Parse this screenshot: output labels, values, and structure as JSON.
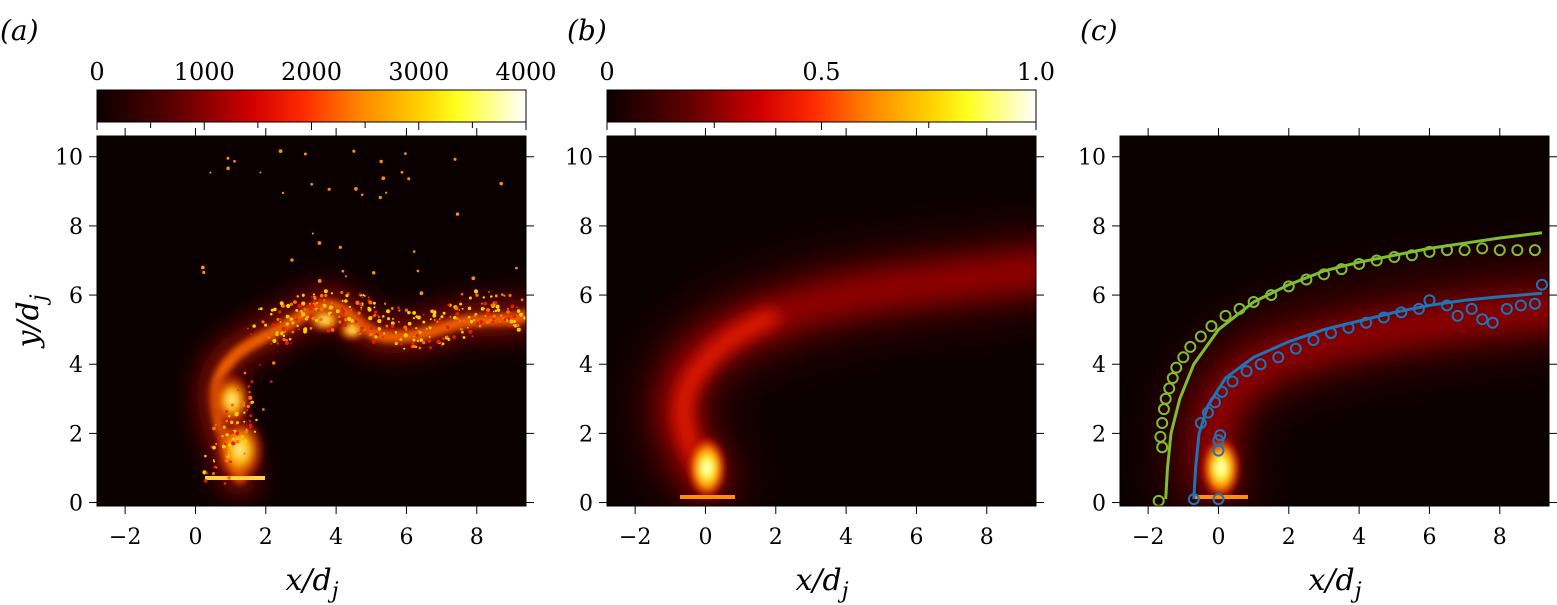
{
  "chart_data": [
    {
      "type": "heatmap",
      "panel_label": "(a)",
      "xlabel": "x/d",
      "xlabel_sub": "j",
      "ylabel": "y/d",
      "ylabel_sub": "j",
      "xlim": [
        -2.8,
        9.4
      ],
      "ylim": [
        -0.1,
        10.6
      ],
      "xticks": [
        -2,
        0,
        2,
        4,
        6,
        8
      ],
      "xtick_labels": [
        "−2",
        "0",
        "2",
        "4",
        "6",
        "8"
      ],
      "yticks": [
        0,
        2,
        4,
        6,
        8,
        10
      ],
      "ytick_labels": [
        "0",
        "2",
        "4",
        "6",
        "8",
        "10"
      ],
      "colorbar": {
        "min": 0,
        "max": 4000,
        "ticks": [
          0,
          1000,
          2000,
          3000,
          4000
        ],
        "tick_labels": [
          "0",
          "1000",
          "2000",
          "3000",
          "4000"
        ],
        "colormap": "hot"
      },
      "description_values": {
        "jet_exit": [
          1.0,
          0.7
        ],
        "instantaneous_plume_path": [
          [
            1.0,
            0.8
          ],
          [
            1.0,
            2.0
          ],
          [
            1.5,
            3.5
          ],
          [
            2.5,
            4.5
          ],
          [
            3.5,
            5.2
          ],
          [
            5.0,
            5.0
          ],
          [
            7.0,
            5.0
          ],
          [
            9.2,
            5.3
          ]
        ]
      }
    },
    {
      "type": "heatmap",
      "panel_label": "(b)",
      "xlabel": "x/d",
      "xlabel_sub": "j",
      "xlim": [
        -2.8,
        9.4
      ],
      "ylim": [
        -0.1,
        10.6
      ],
      "xticks": [
        -2,
        0,
        2,
        4,
        6,
        8
      ],
      "xtick_labels": [
        "−2",
        "0",
        "2",
        "4",
        "6",
        "8"
      ],
      "yticks": [
        0,
        2,
        4,
        6,
        8,
        10
      ],
      "ytick_labels": [
        "0",
        "2",
        "4",
        "6",
        "8",
        "10"
      ],
      "colorbar": {
        "min": 0,
        "max": 1.0,
        "ticks": [
          0,
          0.5,
          1.0
        ],
        "tick_labels": [
          "0",
          "0.5",
          "1.0"
        ],
        "colormap": "hot"
      },
      "description_values": {
        "jet_exit": [
          -0.1,
          0.2
        ],
        "mean_plume_centerline": [
          [
            -0.1,
            0.3
          ],
          [
            -0.8,
            2.5
          ],
          [
            0,
            4.2
          ],
          [
            2,
            5.3
          ],
          [
            4,
            5.8
          ],
          [
            6,
            6.2
          ],
          [
            9,
            6.6
          ]
        ]
      }
    },
    {
      "type": "heatmap",
      "panel_label": "(c)",
      "xlabel": "x/d",
      "xlabel_sub": "j",
      "xlim": [
        -2.8,
        9.4
      ],
      "ylim": [
        -0.1,
        10.6
      ],
      "xticks": [
        -2,
        0,
        2,
        4,
        6,
        8
      ],
      "xtick_labels": [
        "−2",
        "0",
        "2",
        "4",
        "6",
        "8"
      ],
      "yticks": [
        0,
        2,
        4,
        6,
        8,
        10
      ],
      "ytick_labels": [
        "0",
        "2",
        "4",
        "6",
        "8",
        "10"
      ],
      "series": [
        {
          "color": "#7fbf2f",
          "line": [
            [
              -1.5,
              0.1
            ],
            [
              -1.45,
              1.0
            ],
            [
              -1.35,
              2.0
            ],
            [
              -1.1,
              3.0
            ],
            [
              -0.7,
              4.0
            ],
            [
              0.0,
              5.0
            ],
            [
              1.0,
              5.8
            ],
            [
              2.0,
              6.3
            ],
            [
              3.0,
              6.7
            ],
            [
              4.0,
              6.95
            ],
            [
              5.0,
              7.15
            ],
            [
              6.0,
              7.35
            ],
            [
              7.0,
              7.5
            ],
            [
              8.0,
              7.65
            ],
            [
              9.2,
              7.8
            ]
          ],
          "points": [
            [
              -1.7,
              0.05
            ],
            [
              -1.6,
              1.6
            ],
            [
              -1.65,
              1.9
            ],
            [
              -1.6,
              2.3
            ],
            [
              -1.55,
              2.7
            ],
            [
              -1.5,
              3.0
            ],
            [
              -1.4,
              3.3
            ],
            [
              -1.3,
              3.6
            ],
            [
              -1.2,
              3.9
            ],
            [
              -1.0,
              4.2
            ],
            [
              -0.8,
              4.5
            ],
            [
              -0.5,
              4.8
            ],
            [
              -0.2,
              5.1
            ],
            [
              0.2,
              5.4
            ],
            [
              0.6,
              5.6
            ],
            [
              1.0,
              5.8
            ],
            [
              1.5,
              6.0
            ],
            [
              2.0,
              6.25
            ],
            [
              2.5,
              6.45
            ],
            [
              3.0,
              6.6
            ],
            [
              3.5,
              6.75
            ],
            [
              4.0,
              6.9
            ],
            [
              4.5,
              7.0
            ],
            [
              5.0,
              7.1
            ],
            [
              5.5,
              7.15
            ],
            [
              6.0,
              7.25
            ],
            [
              6.5,
              7.3
            ],
            [
              7.0,
              7.3
            ],
            [
              7.5,
              7.35
            ],
            [
              8.0,
              7.3
            ],
            [
              8.5,
              7.3
            ],
            [
              9.0,
              7.3
            ]
          ]
        },
        {
          "color": "#1f73b7",
          "line": [
            [
              -0.7,
              0.1
            ],
            [
              -0.65,
              1.0
            ],
            [
              -0.55,
              2.0
            ],
            [
              -0.3,
              2.8
            ],
            [
              0.2,
              3.6
            ],
            [
              1.0,
              4.2
            ],
            [
              2.0,
              4.65
            ],
            [
              3.0,
              5.0
            ],
            [
              4.0,
              5.25
            ],
            [
              5.0,
              5.5
            ],
            [
              6.0,
              5.7
            ],
            [
              7.0,
              5.85
            ],
            [
              8.0,
              5.95
            ],
            [
              9.2,
              6.05
            ]
          ],
          "points": [
            [
              -0.7,
              0.1
            ],
            [
              0.0,
              0.1
            ],
            [
              0.0,
              1.5
            ],
            [
              0.0,
              1.8
            ],
            [
              0.05,
              1.95
            ],
            [
              -0.5,
              2.3
            ],
            [
              -0.3,
              2.6
            ],
            [
              -0.1,
              2.9
            ],
            [
              0.1,
              3.2
            ],
            [
              0.4,
              3.5
            ],
            [
              0.8,
              3.8
            ],
            [
              1.2,
              4.0
            ],
            [
              1.7,
              4.2
            ],
            [
              2.2,
              4.45
            ],
            [
              2.7,
              4.7
            ],
            [
              3.2,
              4.9
            ],
            [
              3.7,
              5.05
            ],
            [
              4.2,
              5.2
            ],
            [
              4.7,
              5.35
            ],
            [
              5.2,
              5.5
            ],
            [
              5.7,
              5.6
            ],
            [
              6.0,
              5.85
            ],
            [
              6.5,
              5.7
            ],
            [
              6.8,
              5.4
            ],
            [
              7.2,
              5.6
            ],
            [
              7.5,
              5.3
            ],
            [
              7.8,
              5.2
            ],
            [
              8.2,
              5.6
            ],
            [
              8.6,
              5.7
            ],
            [
              9.0,
              5.75
            ],
            [
              9.2,
              6.3
            ]
          ]
        }
      ]
    }
  ]
}
